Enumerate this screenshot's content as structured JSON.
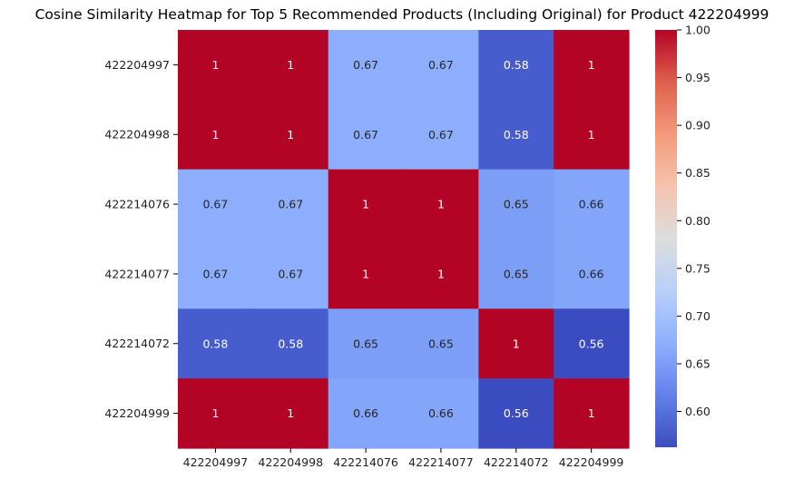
{
  "chart_data": {
    "type": "heatmap",
    "title": "Cosine Similarity Heatmap for Top 5 Recommended Products (Including Original) for Product 422204999",
    "row_labels": [
      "422204997",
      "422204998",
      "422214076",
      "422214077",
      "422214072",
      "422204999"
    ],
    "col_labels": [
      "422204997",
      "422204998",
      "422214076",
      "422214077",
      "422214072",
      "422204999"
    ],
    "values": [
      [
        1,
        1,
        0.67,
        0.67,
        0.58,
        1
      ],
      [
        1,
        1,
        0.67,
        0.67,
        0.58,
        1
      ],
      [
        0.67,
        0.67,
        1,
        1,
        0.65,
        0.66
      ],
      [
        0.67,
        0.67,
        1,
        1,
        0.65,
        0.66
      ],
      [
        0.58,
        0.58,
        0.65,
        0.65,
        1,
        0.56
      ],
      [
        1,
        1,
        0.66,
        0.66,
        0.56,
        1
      ]
    ],
    "colormap": "coolwarm",
    "colorbar": {
      "vmin": 0.5625,
      "vmax": 1.0,
      "ticks": [
        0.6,
        0.65,
        0.7,
        0.75,
        0.8,
        0.85,
        0.9,
        0.95,
        1.0
      ],
      "tick_labels": [
        "0.60",
        "0.65",
        "0.70",
        "0.75",
        "0.80",
        "0.85",
        "0.90",
        "0.95",
        "1.00"
      ]
    },
    "xlabel": "",
    "ylabel": ""
  }
}
